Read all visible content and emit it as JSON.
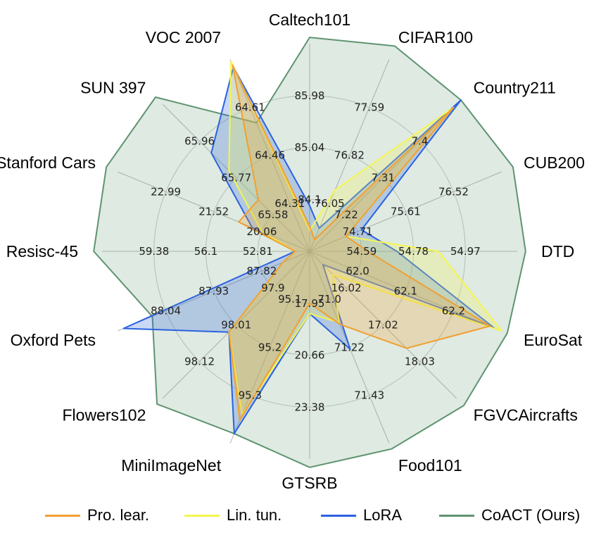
{
  "chart_data": {
    "type": "radar",
    "categories": [
      "Caltech101",
      "CIFAR100",
      "Country211",
      "CUB200",
      "DTD",
      "EuroSat",
      "FGVCAircrafts",
      "Food101",
      "GTSRB",
      "MiniImageNet",
      "Flowers102",
      "Oxford Pets",
      "Resisc-45",
      "Stanford Cars",
      "SUN 397",
      "VOC 2007"
    ],
    "ticks": [
      [
        "84.1",
        "85.04",
        "85.98"
      ],
      [
        "76.05",
        "76.82",
        "77.59"
      ],
      [
        "7.22",
        "7.31",
        "7.4"
      ],
      [
        "74.71",
        "75.61",
        "76.52"
      ],
      [
        "54.59",
        "54.78",
        "54.97"
      ],
      [
        "62.0",
        "62.1",
        "62.2"
      ],
      [
        "16.02",
        "17.02",
        "18.03"
      ],
      [
        "71.0",
        "71.22",
        "71.43"
      ],
      [
        "17.95",
        "20.66",
        "23.38"
      ],
      [
        "95.1",
        "95.2",
        "95.3"
      ],
      [
        "97.9",
        "98.01",
        "98.12"
      ],
      [
        "87.82",
        "87.93",
        "88.04"
      ],
      [
        "52.81",
        "56.1",
        "59.38"
      ],
      [
        "20.06",
        "21.52",
        "22.99"
      ],
      [
        "65.58",
        "65.77",
        "65.96"
      ],
      [
        "64.31",
        "64.46",
        "64.61"
      ]
    ],
    "rlim": [
      0,
      1
    ],
    "series": [
      {
        "name": "Pro. lear.",
        "color": "#f0a030",
        "values": [
          0.12,
          0.06,
          0.98,
          0.19,
          0.28,
          0.94,
          0.66,
          0.38,
          0.25,
          0.88,
          0.55,
          0.14,
          0.07,
          0.37,
          0.35,
          0.97
        ]
      },
      {
        "name": "Lin. tun.",
        "color": "#f5f550",
        "values": [
          0.1,
          0.32,
          0.98,
          0.19,
          0.62,
          1.0,
          0.16,
          0.37,
          0.3,
          0.85,
          0.55,
          0.14,
          0.07,
          0.25,
          0.55,
          0.99
        ]
      },
      {
        "name": "LoRA",
        "color": "#2b62e0",
        "values": [
          0.22,
          0.12,
          1.03,
          0.27,
          0.42,
          0.96,
          0.09,
          0.51,
          0.3,
          0.95,
          0.55,
          0.97,
          0.07,
          0.3,
          0.67,
          0.96
        ]
      },
      {
        "name": "CoACT (Ours)",
        "color": "#5e9470",
        "values": [
          1.03,
          1.07,
          1.03,
          1.06,
          1.04,
          1.03,
          1.05,
          1.03,
          1.04,
          0.95,
          1.04,
          0.82,
          1.04,
          1.06,
          1.05,
          0.67
        ]
      }
    ],
    "grid": true,
    "legend_position": "bottom"
  }
}
